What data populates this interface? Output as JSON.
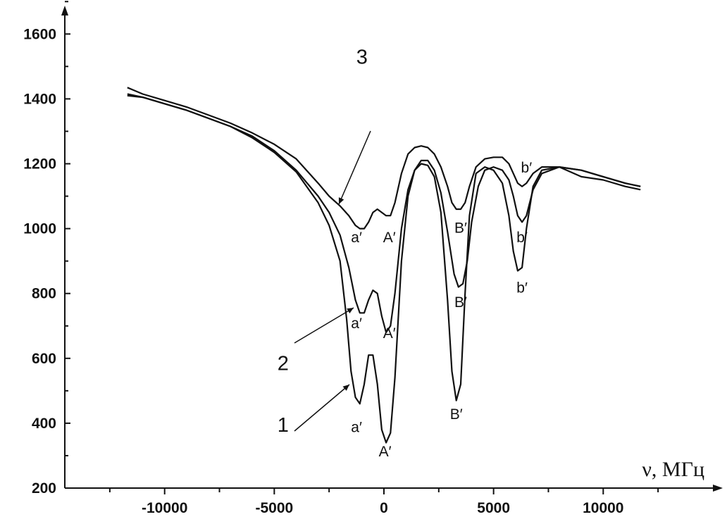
{
  "chart_data": {
    "type": "line",
    "xlabel": "ν, МГц",
    "ylabel": "",
    "xlim": [
      -14500,
      14500
    ],
    "ylim": [
      200,
      1720
    ],
    "xticks": [
      -10000,
      -5000,
      0,
      5000,
      10000
    ],
    "xtick_labels": [
      "-10000",
      "-5000",
      "0",
      "5000",
      "10000"
    ],
    "yticks": [
      200,
      400,
      600,
      800,
      1000,
      1200,
      1400,
      1600
    ],
    "ytick_labels": [
      "200",
      "400",
      "600",
      "800",
      "1000",
      "1200",
      "1400",
      "1600"
    ],
    "grid": false,
    "series": [
      {
        "name": "1",
        "x": [
          -11700,
          -11000,
          -10000,
          -9000,
          -8000,
          -7000,
          -6000,
          -5000,
          -4000,
          -3000,
          -2500,
          -2000,
          -1700,
          -1500,
          -1300,
          -1100,
          -900,
          -700,
          -500,
          -300,
          -100,
          100,
          300,
          500,
          800,
          1100,
          1400,
          1700,
          2000,
          2300,
          2600,
          2900,
          3100,
          3300,
          3500,
          3700,
          3900,
          4200,
          4600,
          5000,
          5400,
          5700,
          5900,
          6100,
          6300,
          6500,
          6800,
          7200,
          8000,
          9000,
          10000,
          11000,
          11700
        ],
        "y": [
          1410,
          1405,
          1385,
          1365,
          1340,
          1315,
          1280,
          1235,
          1175,
          1080,
          1010,
          900,
          720,
          560,
          480,
          460,
          520,
          610,
          610,
          520,
          380,
          340,
          370,
          540,
          900,
          1100,
          1180,
          1200,
          1195,
          1160,
          1050,
          780,
          560,
          470,
          520,
          800,
          1040,
          1170,
          1190,
          1180,
          1140,
          1040,
          930,
          870,
          880,
          1000,
          1130,
          1180,
          1190,
          1160,
          1150,
          1130,
          1120
        ]
      },
      {
        "name": "2",
        "x": [
          -11700,
          -11000,
          -10000,
          -9000,
          -8000,
          -7000,
          -6000,
          -5000,
          -4000,
          -3000,
          -2500,
          -2000,
          -1600,
          -1300,
          -1100,
          -900,
          -700,
          -500,
          -300,
          -100,
          100,
          300,
          500,
          800,
          1100,
          1400,
          1700,
          2000,
          2300,
          2600,
          2900,
          3200,
          3400,
          3600,
          3800,
          4000,
          4300,
          4600,
          5000,
          5400,
          5700,
          5900,
          6100,
          6300,
          6500,
          6800,
          7200,
          8000,
          9000,
          10000,
          11000,
          11700
        ],
        "y": [
          1415,
          1405,
          1385,
          1365,
          1340,
          1315,
          1285,
          1240,
          1180,
          1100,
          1050,
          980,
          880,
          780,
          740,
          740,
          780,
          810,
          800,
          730,
          680,
          700,
          800,
          1000,
          1120,
          1180,
          1210,
          1210,
          1180,
          1110,
          990,
          860,
          820,
          830,
          900,
          1020,
          1130,
          1180,
          1190,
          1180,
          1150,
          1100,
          1040,
          1020,
          1040,
          1120,
          1170,
          1190,
          1180,
          1160,
          1140,
          1130
        ]
      },
      {
        "name": "3",
        "x": [
          -11700,
          -11000,
          -10000,
          -9000,
          -8000,
          -7000,
          -6000,
          -5000,
          -4000,
          -3000,
          -2500,
          -2000,
          -1600,
          -1300,
          -1100,
          -900,
          -700,
          -500,
          -300,
          -100,
          100,
          300,
          500,
          800,
          1100,
          1400,
          1700,
          2000,
          2300,
          2600,
          2900,
          3100,
          3300,
          3500,
          3700,
          3900,
          4200,
          4600,
          5000,
          5400,
          5700,
          5900,
          6100,
          6300,
          6500,
          6800,
          7200,
          8000,
          9000,
          10000,
          11000,
          11700
        ],
        "y": [
          1435,
          1415,
          1395,
          1375,
          1350,
          1325,
          1295,
          1260,
          1215,
          1140,
          1100,
          1070,
          1040,
          1010,
          1000,
          1000,
          1020,
          1050,
          1060,
          1050,
          1040,
          1040,
          1080,
          1170,
          1230,
          1250,
          1255,
          1250,
          1230,
          1190,
          1130,
          1080,
          1060,
          1060,
          1080,
          1130,
          1190,
          1215,
          1220,
          1220,
          1200,
          1170,
          1140,
          1130,
          1140,
          1170,
          1190,
          1190,
          1180,
          1160,
          1140,
          1130
        ]
      }
    ],
    "curve_labels": [
      {
        "text": "1",
        "x": -4600,
        "y": 395
      },
      {
        "text": "2",
        "x": -4600,
        "y": 585
      },
      {
        "text": "3",
        "x": -1000,
        "y": 1530
      }
    ],
    "peak_labels": [
      {
        "text": "a′",
        "x": -1250,
        "y": 975
      },
      {
        "text": "A′",
        "x": 250,
        "y": 975
      },
      {
        "text": "B′",
        "x": 3500,
        "y": 1005
      },
      {
        "text": "b′",
        "x": 6500,
        "y": 1190
      },
      {
        "text": "a′",
        "x": -1250,
        "y": 710
      },
      {
        "text": "A′",
        "x": 250,
        "y": 680
      },
      {
        "text": "B′",
        "x": 3500,
        "y": 775
      },
      {
        "text": "b′",
        "x": 6300,
        "y": 975
      },
      {
        "text": "a′",
        "x": -1250,
        "y": 390
      },
      {
        "text": "A′",
        "x": 50,
        "y": 315
      },
      {
        "text": "B′",
        "x": 3300,
        "y": 430
      },
      {
        "text": "b′",
        "x": 6300,
        "y": 820
      }
    ]
  }
}
